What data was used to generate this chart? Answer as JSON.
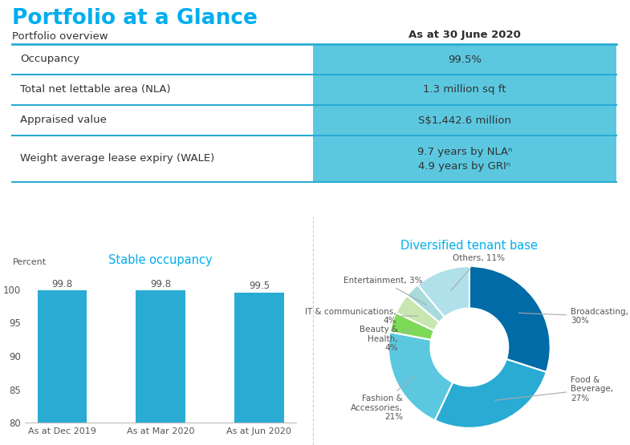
{
  "title": "Portfolio at a Glance",
  "subtitle": "Portfolio overview",
  "title_color": "#00AEEF",
  "subtitle_color": "#333333",
  "date_header": "As at 30 June 2020",
  "date_header_color": "#2C2C2C",
  "table_rows": [
    {
      "label": "Occupancy",
      "value": "99.5%"
    },
    {
      "label": "Total net lettable area (NLA)",
      "value": "1.3 million sq ft"
    },
    {
      "label": "Appraised value",
      "value": "S$1,442.6 million"
    },
    {
      "label": "Weight average lease expiry (WALE)",
      "value": "9.7 years by NLAⁿ\n4.9 years by GRIⁿ"
    }
  ],
  "table_wale_value": "9.7 years by NLA(1)\n4.9 years by GRI(1)",
  "table_bg_color": "#5BC8E0",
  "table_text_color": "#333333",
  "table_border_color": "#29ABD4",
  "bar_title": "Stable occupancy",
  "bar_title_color": "#00AEEF",
  "bar_categories": [
    "As at Dec 2019",
    "As at Mar 2020",
    "As at Jun 2020"
  ],
  "bar_values": [
    99.8,
    99.8,
    99.5
  ],
  "bar_color": "#29ABD4",
  "bar_ylabel": "Percent",
  "bar_ylim": [
    80,
    103
  ],
  "bar_yticks": [
    80,
    85,
    90,
    95,
    100
  ],
  "bar_label_color": "#555555",
  "pie_title": "Diversified tenant base",
  "pie_title_color": "#00AEEF",
  "pie_values": [
    30,
    27,
    21,
    4,
    4,
    3,
    11
  ],
  "pie_colors": [
    "#006BA6",
    "#29ABD4",
    "#5BC8E0",
    "#7ED957",
    "#C8E6B0",
    "#A8DADC",
    "#B0E0EA"
  ],
  "pie_labels": [
    "Broadcasting,\n30%",
    "Food &\nBeverage,\n27%",
    "Fashion &\nAccessories,\n21%",
    "Beauty &\nHealth,\n4%",
    "IT & communications,\n4%",
    "Entertainment, 3%",
    "Others, 11%"
  ],
  "pie_text_color": "#555555",
  "bg_color": "#FFFFFF",
  "axis_color": "#BBBBBB",
  "tick_color": "#555555",
  "divider_color": "#CCCCCC"
}
